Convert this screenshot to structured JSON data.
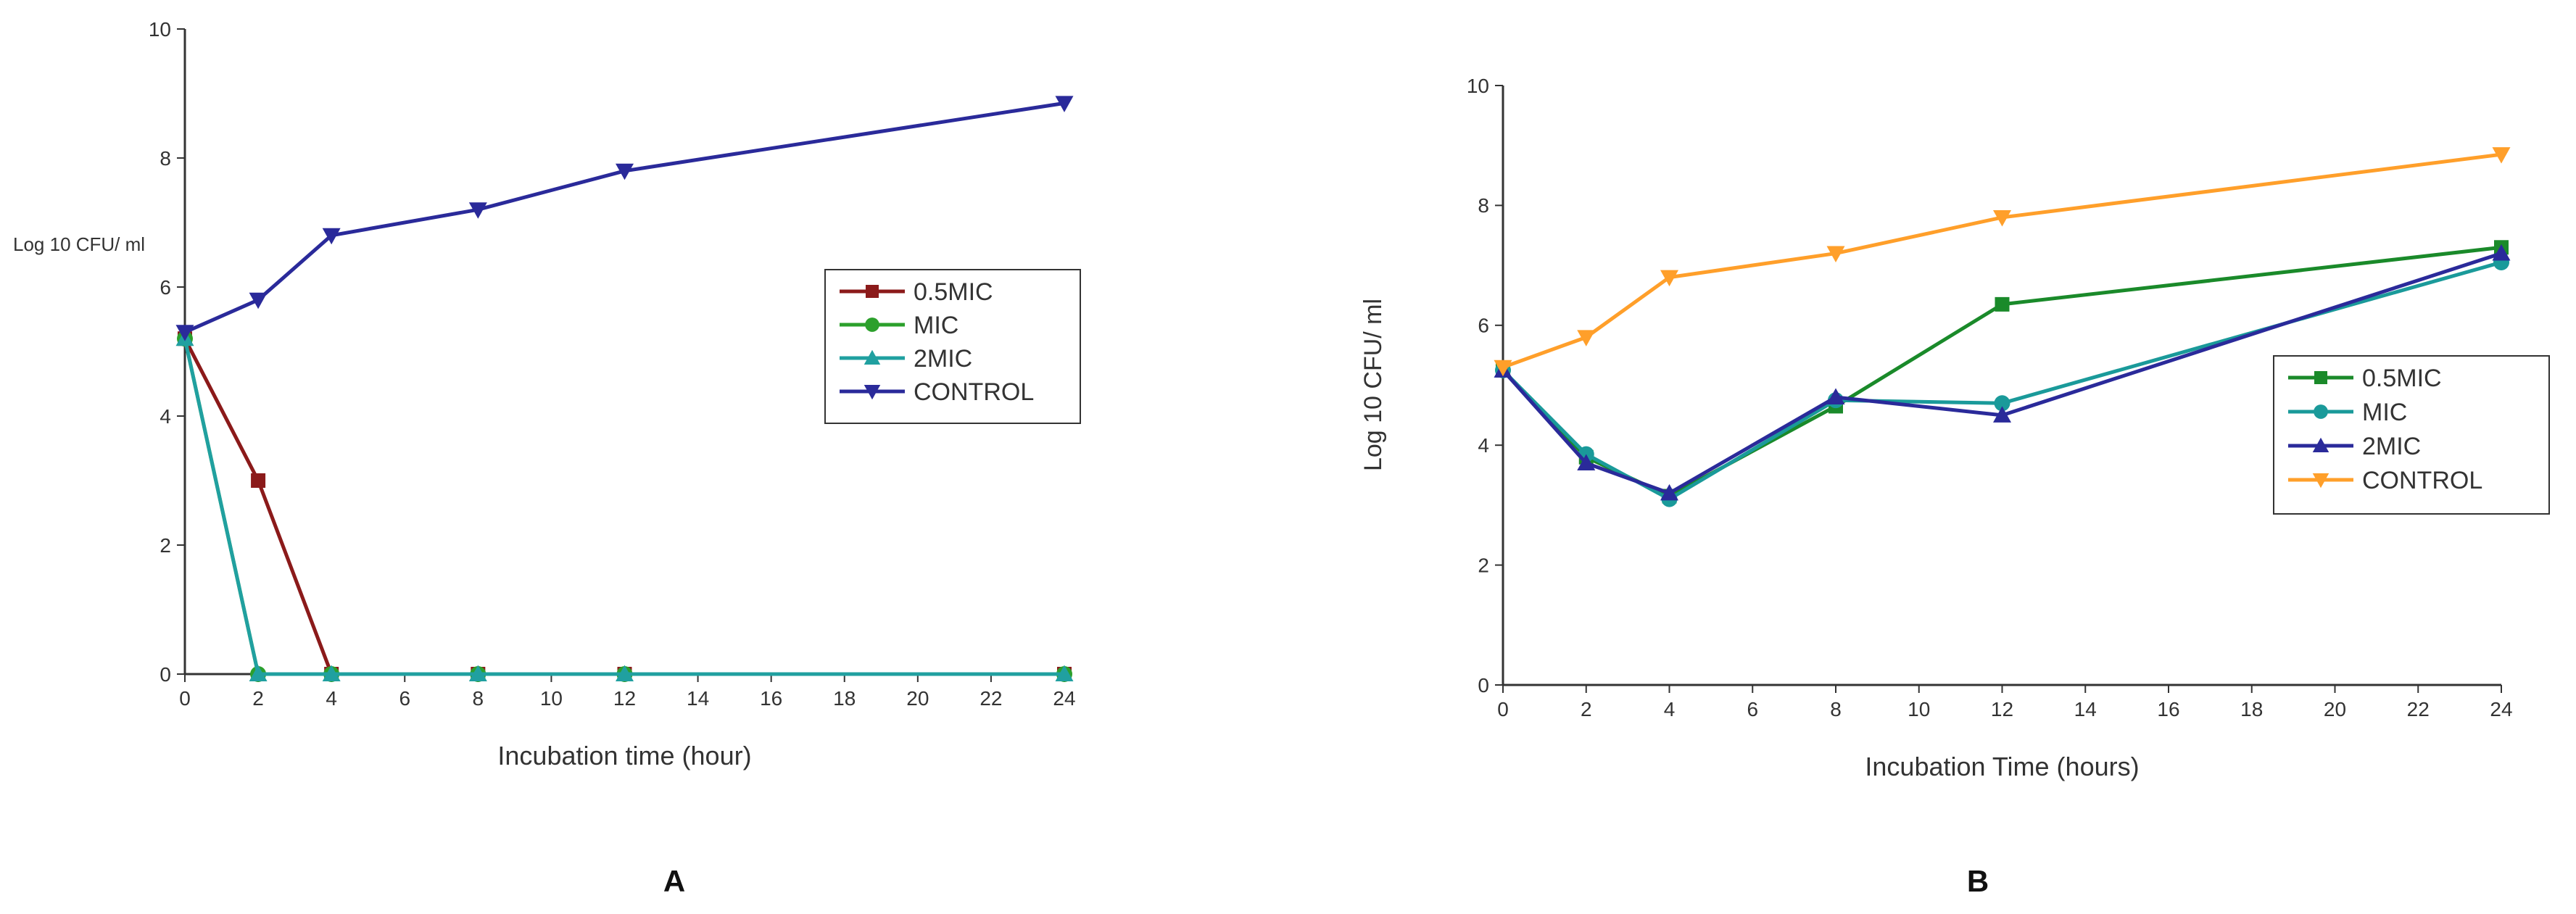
{
  "chart_data": [
    {
      "type": "line",
      "panel_label": "A",
      "title": "",
      "xlabel": "Incubation time (hour)",
      "ylabel": "Log 10 CFU/ ml",
      "xlim": [
        0,
        24
      ],
      "ylim": [
        0,
        10
      ],
      "xticks": [
        0,
        2,
        4,
        6,
        8,
        10,
        12,
        14,
        16,
        18,
        20,
        22,
        24
      ],
      "yticks": [
        0,
        2,
        4,
        6,
        8,
        10
      ],
      "grid": false,
      "legend_position": "center-right",
      "series": [
        {
          "name": "0.5MIC",
          "color": "#8b1a1a",
          "marker": "square",
          "x": [
            0,
            2,
            4,
            8,
            12,
            24
          ],
          "values": [
            5.2,
            3.0,
            0,
            0,
            0,
            0
          ]
        },
        {
          "name": "MIC",
          "color": "#2ca02c",
          "marker": "circle",
          "x": [
            0,
            2,
            4,
            8,
            12,
            24
          ],
          "values": [
            5.2,
            0,
            0,
            0,
            0,
            0
          ]
        },
        {
          "name": "2MIC",
          "color": "#20a0a0",
          "marker": "triangle-up",
          "x": [
            0,
            2,
            4,
            8,
            12,
            24
          ],
          "values": [
            5.2,
            0,
            0,
            0,
            0,
            0
          ]
        },
        {
          "name": "CONTROL",
          "color": "#2a2a9a",
          "marker": "triangle-down",
          "x": [
            0,
            2,
            4,
            8,
            12,
            24
          ],
          "values": [
            5.3,
            5.8,
            6.8,
            7.2,
            7.8,
            8.85
          ]
        }
      ]
    },
    {
      "type": "line",
      "panel_label": "B",
      "title": "",
      "xlabel": "Incubation Time (hours)",
      "ylabel": "Log 10 CFU/ ml",
      "xlim": [
        0,
        24
      ],
      "ylim": [
        0,
        10
      ],
      "xticks": [
        0,
        2,
        4,
        6,
        8,
        10,
        12,
        14,
        16,
        18,
        20,
        22,
        24
      ],
      "yticks": [
        0,
        2,
        4,
        6,
        8,
        10
      ],
      "grid": false,
      "legend_position": "center-right",
      "series": [
        {
          "name": "0.5MIC",
          "color": "#1a8a2a",
          "marker": "square",
          "x": [
            0,
            2,
            4,
            8,
            12,
            24
          ],
          "values": [
            5.25,
            3.8,
            3.15,
            4.65,
            6.35,
            7.3
          ]
        },
        {
          "name": "MIC",
          "color": "#1a9a9a",
          "marker": "circle",
          "x": [
            0,
            2,
            4,
            8,
            12,
            24
          ],
          "values": [
            5.25,
            3.85,
            3.1,
            4.75,
            4.7,
            7.05
          ]
        },
        {
          "name": "2MIC",
          "color": "#2a2a9a",
          "marker": "triangle-up",
          "x": [
            0,
            2,
            4,
            8,
            12,
            24
          ],
          "values": [
            5.25,
            3.7,
            3.2,
            4.8,
            4.5,
            7.2
          ]
        },
        {
          "name": "CONTROL",
          "color": "#ff9f2a",
          "marker": "triangle-down",
          "x": [
            0,
            2,
            4,
            8,
            12,
            24
          ],
          "values": [
            5.3,
            5.8,
            6.8,
            7.2,
            7.8,
            8.85
          ]
        }
      ]
    }
  ]
}
